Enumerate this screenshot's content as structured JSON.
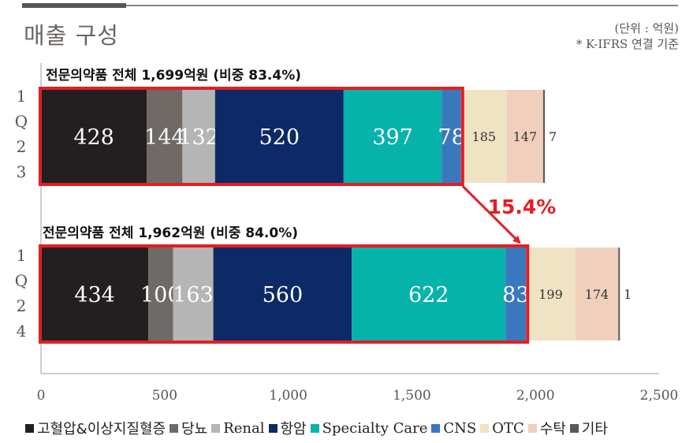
{
  "header": {
    "title": "매출 구성",
    "unit_line1": "(단위 : 억원)",
    "unit_line2": "* K-IFRS 연결 기준"
  },
  "chart_data": {
    "type": "bar",
    "orientation": "horizontal",
    "stacked": true,
    "xlim": [
      0,
      2500
    ],
    "x_ticks": [
      "0",
      "500",
      "1,000",
      "1,500",
      "2,000",
      "2,500"
    ],
    "grid": false,
    "legend_position": "bottom",
    "categories": [
      "1Q23",
      "1Q24"
    ],
    "category_labels": [
      [
        "1",
        "Q",
        "2",
        "3"
      ],
      [
        "1",
        "Q",
        "2",
        "4"
      ]
    ],
    "series": [
      {
        "name": "고혈압&이상지질혈증",
        "color": "#231f20",
        "values": [
          428,
          434
        ],
        "labels": [
          "428",
          "434"
        ]
      },
      {
        "name": "당뇨",
        "color": "#6f6a66",
        "values": [
          144,
          100
        ],
        "labels": [
          "144",
          "100"
        ]
      },
      {
        "name": "Renal",
        "color": "#b5b5b5",
        "values": [
          132,
          163
        ],
        "labels": [
          "132",
          "163"
        ]
      },
      {
        "name": "항암",
        "color": "#0d2a66",
        "values": [
          520,
          560
        ],
        "labels": [
          "520",
          "560"
        ]
      },
      {
        "name": "Specialty Care",
        "color": "#05b3ab",
        "values": [
          397,
          622
        ],
        "labels": [
          "397",
          "622"
        ]
      },
      {
        "name": "CNS",
        "color": "#3a78bd",
        "values": [
          78,
          83
        ],
        "labels": [
          "78",
          "83"
        ]
      },
      {
        "name": "OTC",
        "color": "#efe3c3",
        "values": [
          185,
          199
        ],
        "labels": [
          "185",
          "199"
        ]
      },
      {
        "name": "수탁",
        "color": "#f1cfbd",
        "values": [
          147,
          174
        ],
        "labels": [
          "147",
          "174"
        ]
      },
      {
        "name": "기타",
        "color": "#595959",
        "values": [
          7,
          1
        ],
        "labels": [
          "7",
          "1"
        ]
      }
    ],
    "group_titles": [
      "전문의약품 전체 1,699억원 (비중 83.4%)",
      "전문의약품 전체 1,962억원 (비중 84.0%)"
    ],
    "growth_annotation": "15.4%",
    "highlight_color": "#e31e24"
  }
}
